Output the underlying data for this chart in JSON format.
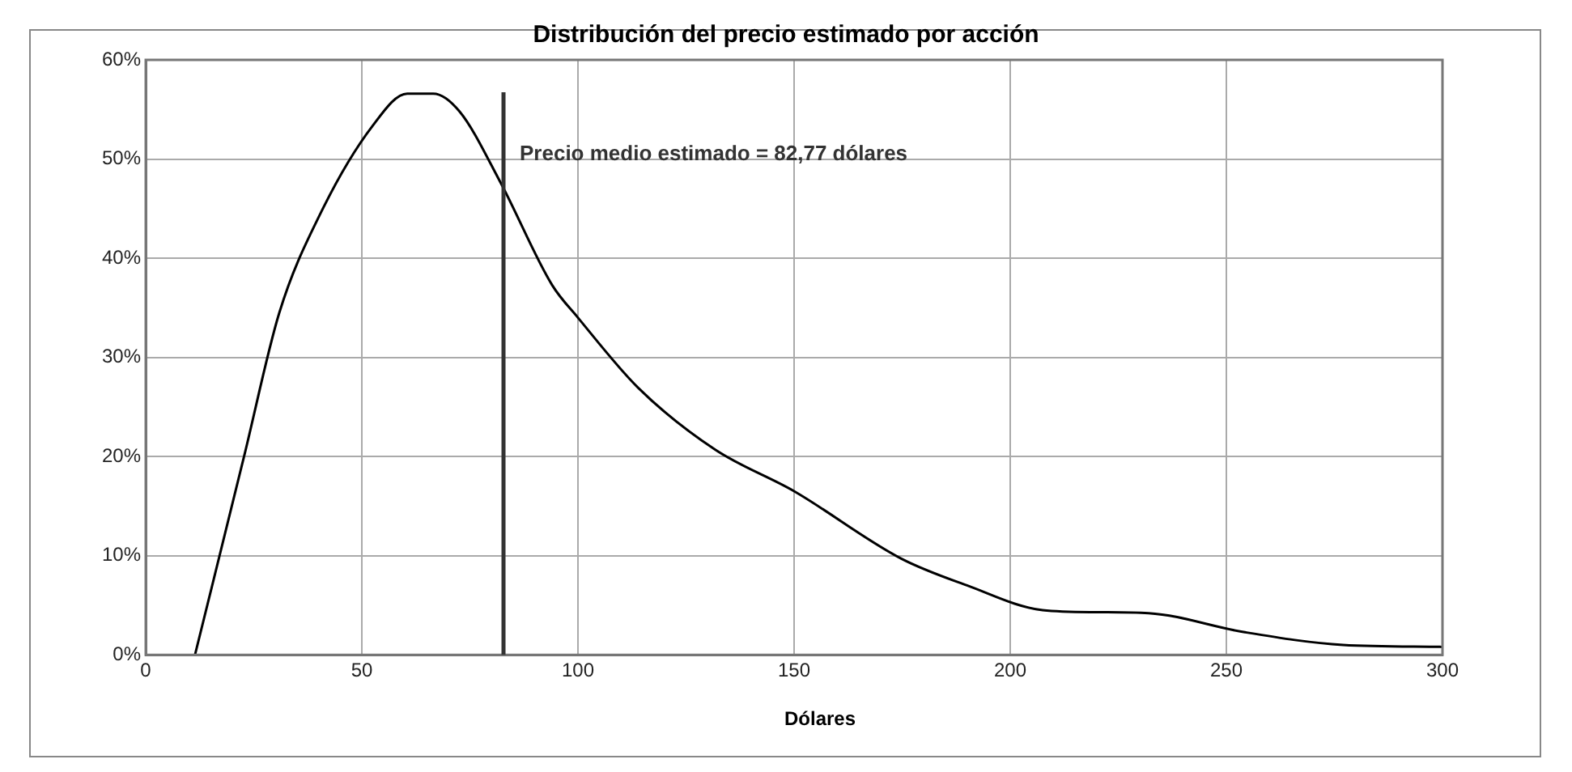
{
  "chart_data": {
    "type": "line",
    "title": "Distribución del precio estimado por acción",
    "xlabel": "Dólares",
    "x": [
      11.4,
      22.8,
      30.9,
      40.3,
      52.4,
      60.5,
      66.5,
      72.6,
      82,
      94,
      100,
      114,
      131.7,
      150,
      174.8,
      190,
      207.5,
      220,
      232,
      254,
      277,
      300
    ],
    "series": [
      {
        "color": "#000000",
        "values": [
          0,
          20.1,
          34.5,
          44.4,
          53.3,
          56.6,
          56.6,
          54.8,
          47.7,
          37.3,
          34,
          26.9,
          20.7,
          16.5,
          9.7,
          7,
          4.5,
          4.3,
          4.2,
          2.3,
          1,
          0.8
        ]
      }
    ],
    "xlim": [
      0,
      300
    ],
    "xticks": [
      0,
      50,
      100,
      150,
      200,
      250,
      300
    ],
    "ylim": [
      0,
      60
    ],
    "yticks": [
      {
        "value": 0,
        "label": "0%"
      },
      {
        "value": 10,
        "label": "10%"
      },
      {
        "value": 20,
        "label": "20%"
      },
      {
        "value": 30,
        "label": "30%"
      },
      {
        "value": 40,
        "label": "40%"
      },
      {
        "value": 50,
        "label": "50%"
      },
      {
        "value": 60,
        "label": "60%"
      }
    ],
    "ref_lines": [
      {
        "axis": "x",
        "value": 82.77,
        "label": "Precio medio estimado = 82,77 dólares",
        "color": "#333333"
      }
    ],
    "grid": true,
    "legend": false,
    "marker": "none",
    "line_style": "solid"
  }
}
